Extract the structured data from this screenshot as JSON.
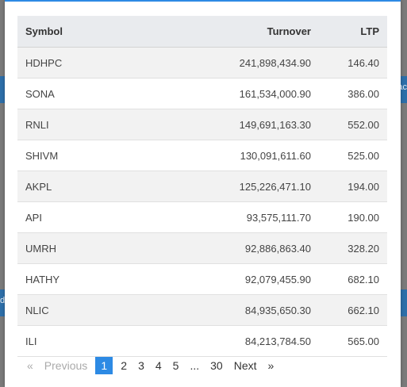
{
  "background": {
    "right_fragment": "ac",
    "left_fragment": "d"
  },
  "table": {
    "headers": [
      "Symbol",
      "Turnover",
      "LTP"
    ],
    "rows": [
      [
        "HDHPC",
        "241,898,434.90",
        "146.40"
      ],
      [
        "SONA",
        "161,534,000.90",
        "386.00"
      ],
      [
        "RNLI",
        "149,691,163.30",
        "552.00"
      ],
      [
        "SHIVM",
        "130,091,611.60",
        "525.00"
      ],
      [
        "AKPL",
        "125,226,471.10",
        "194.00"
      ],
      [
        "API",
        "93,575,111.70",
        "190.00"
      ],
      [
        "UMRH",
        "92,886,863.40",
        "328.20"
      ],
      [
        "HATHY",
        "92,079,455.90",
        "682.10"
      ],
      [
        "NLIC",
        "84,935,650.30",
        "662.10"
      ],
      [
        "ILI",
        "84,213,784.50",
        "565.00"
      ]
    ]
  },
  "pagination": {
    "prev_arrow": "«",
    "prev_label": "Previous",
    "pages": [
      "1",
      "2",
      "3",
      "4",
      "5"
    ],
    "ellipsis": "...",
    "last_page": "30",
    "next_label": "Next",
    "next_arrow": "»",
    "current": "1"
  },
  "colors": {
    "accent": "#2d8ae4",
    "header_bg": "#e9ebee",
    "stripe_bg": "#f2f2f2"
  }
}
